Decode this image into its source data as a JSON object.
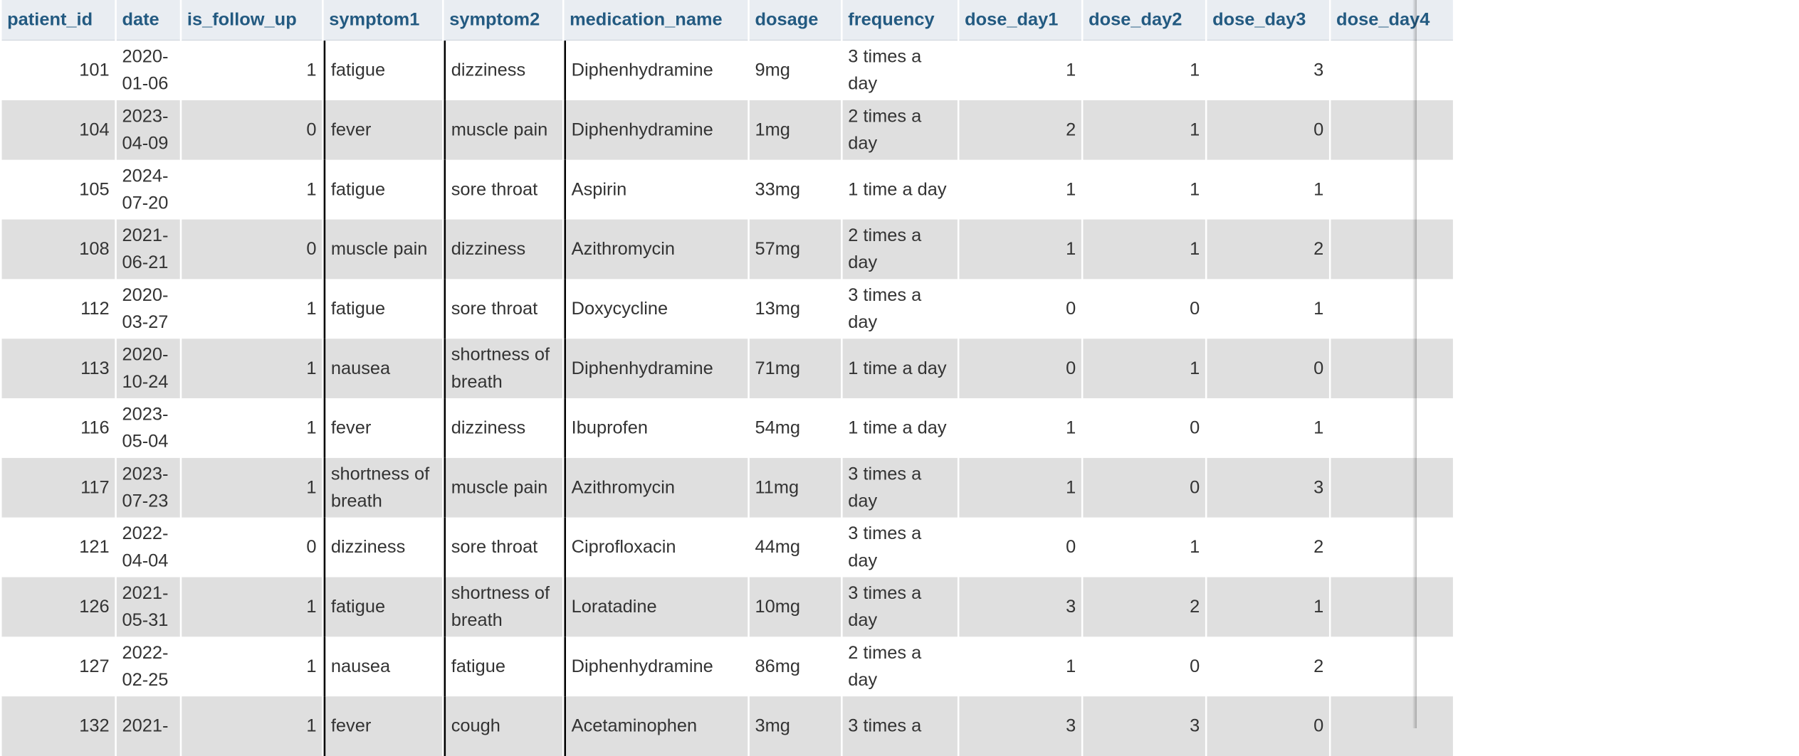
{
  "table": {
    "headers": {
      "patient_id": "patient_id",
      "date": "date",
      "is_follow_up": "is_follow_up",
      "symptom1": "symptom1",
      "symptom2": "symptom2",
      "medication_name": "medication_name",
      "dosage": "dosage",
      "frequency": "frequency",
      "dose_day1": "dose_day1",
      "dose_day2": "dose_day2",
      "dose_day3": "dose_day3",
      "dose_day4": "dose_day4"
    },
    "rows": [
      {
        "patient_id": "101",
        "date": "2020-01-06",
        "is_follow_up": "1",
        "symptom1": "fatigue",
        "symptom2": "dizziness",
        "medication_name": "Diphenhydramine",
        "dosage": "9mg",
        "frequency": "3 times a day",
        "dose_day1": "1",
        "dose_day2": "1",
        "dose_day3": "3"
      },
      {
        "patient_id": "104",
        "date": "2023-04-09",
        "is_follow_up": "0",
        "symptom1": "fever",
        "symptom2": "muscle pain",
        "medication_name": "Diphenhydramine",
        "dosage": "1mg",
        "frequency": "2 times a day",
        "dose_day1": "2",
        "dose_day2": "1",
        "dose_day3": "0"
      },
      {
        "patient_id": "105",
        "date": "2024-07-20",
        "is_follow_up": "1",
        "symptom1": "fatigue",
        "symptom2": "sore throat",
        "medication_name": "Aspirin",
        "dosage": "33mg",
        "frequency": "1 time a day",
        "dose_day1": "1",
        "dose_day2": "1",
        "dose_day3": "1"
      },
      {
        "patient_id": "108",
        "date": "2021-06-21",
        "is_follow_up": "0",
        "symptom1": "muscle pain",
        "symptom2": "dizziness",
        "medication_name": "Azithromycin",
        "dosage": "57mg",
        "frequency": "2 times a day",
        "dose_day1": "1",
        "dose_day2": "1",
        "dose_day3": "2"
      },
      {
        "patient_id": "112",
        "date": "2020-03-27",
        "is_follow_up": "1",
        "symptom1": "fatigue",
        "symptom2": "sore throat",
        "medication_name": "Doxycycline",
        "dosage": "13mg",
        "frequency": "3 times a day",
        "dose_day1": "0",
        "dose_day2": "0",
        "dose_day3": "1"
      },
      {
        "patient_id": "113",
        "date": "2020-10-24",
        "is_follow_up": "1",
        "symptom1": "nausea",
        "symptom2": "shortness of breath",
        "medication_name": "Diphenhydramine",
        "dosage": "71mg",
        "frequency": "1 time a day",
        "dose_day1": "0",
        "dose_day2": "1",
        "dose_day3": "0"
      },
      {
        "patient_id": "116",
        "date": "2023-05-04",
        "is_follow_up": "1",
        "symptom1": "fever",
        "symptom2": "dizziness",
        "medication_name": "Ibuprofen",
        "dosage": "54mg",
        "frequency": "1 time a day",
        "dose_day1": "1",
        "dose_day2": "0",
        "dose_day3": "1"
      },
      {
        "patient_id": "117",
        "date": "2023-07-23",
        "is_follow_up": "1",
        "symptom1": "shortness of breath",
        "symptom2": "muscle pain",
        "medication_name": "Azithromycin",
        "dosage": "11mg",
        "frequency": "3 times a day",
        "dose_day1": "1",
        "dose_day2": "0",
        "dose_day3": "3"
      },
      {
        "patient_id": "121",
        "date": "2022-04-04",
        "is_follow_up": "0",
        "symptom1": "dizziness",
        "symptom2": "sore throat",
        "medication_name": "Ciprofloxacin",
        "dosage": "44mg",
        "frequency": "3 times a day",
        "dose_day1": "0",
        "dose_day2": "1",
        "dose_day3": "2"
      },
      {
        "patient_id": "126",
        "date": "2021-05-31",
        "is_follow_up": "1",
        "symptom1": "fatigue",
        "symptom2": "shortness of breath",
        "medication_name": "Loratadine",
        "dosage": "10mg",
        "frequency": "3 times a day",
        "dose_day1": "3",
        "dose_day2": "2",
        "dose_day3": "1"
      },
      {
        "patient_id": "127",
        "date": "2022-02-25",
        "is_follow_up": "1",
        "symptom1": "nausea",
        "symptom2": "fatigue",
        "medication_name": "Diphenhydramine",
        "dosage": "86mg",
        "frequency": "2 times a day",
        "dose_day1": "1",
        "dose_day2": "0",
        "dose_day3": "2"
      },
      {
        "patient_id": "132",
        "date": "2021-",
        "is_follow_up": "1",
        "symptom1": "fever",
        "symptom2": "cough",
        "medication_name": "Acetaminophen",
        "dosage": "3mg",
        "frequency": "3 times a",
        "dose_day1": "3",
        "dose_day2": "3",
        "dose_day3": "0"
      }
    ]
  }
}
